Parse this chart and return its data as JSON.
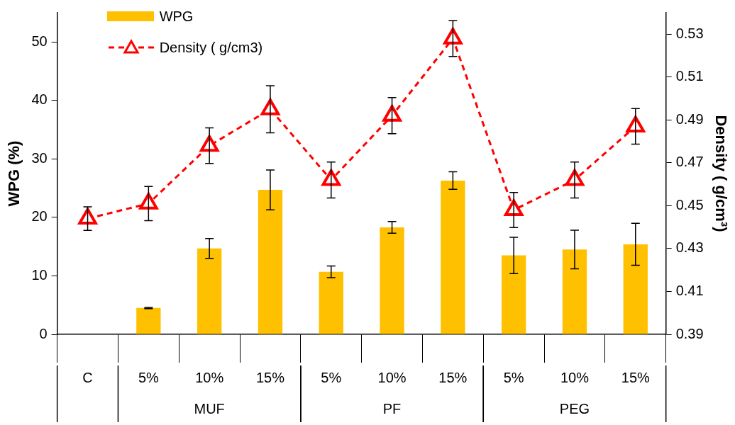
{
  "chart_data": {
    "type": "bar",
    "categories": [
      "C",
      "5%",
      "10%",
      "15%",
      "5%",
      "10%",
      "15%",
      "5%",
      "10%",
      "15%"
    ],
    "ylabel": "WPG (%)",
    "y2label": "Density ( g/cm³)",
    "ylim": [
      0,
      55
    ],
    "yticks": [
      0,
      10,
      20,
      30,
      40,
      50
    ],
    "y2lim": [
      0.39,
      0.54
    ],
    "y2ticks": [
      0.39,
      0.41,
      0.43,
      0.45,
      0.47,
      0.49,
      0.51,
      0.53
    ],
    "series": [
      {
        "name": "WPG",
        "color": "#ffc000",
        "values": [
          null,
          4.5,
          14.7,
          24.7,
          10.7,
          18.3,
          26.3,
          13.5,
          14.5,
          15.4
        ],
        "errors": [
          null,
          0.1,
          1.7,
          3.4,
          1.0,
          1.0,
          1.5,
          3.1,
          3.3,
          3.6
        ]
      },
      {
        "name": "Density ( g/cm3)",
        "type": "line",
        "axis": "y2",
        "color": "#ff0000",
        "marker": "triangle",
        "line_style": "dashed",
        "values": [
          0.444,
          0.451,
          0.478,
          0.495,
          0.462,
          0.492,
          0.528,
          0.448,
          0.462,
          0.487
        ],
        "errors": [
          0.0055,
          0.008,
          0.0083,
          0.011,
          0.0084,
          0.0084,
          0.0084,
          0.0082,
          0.0084,
          0.0083
        ]
      }
    ],
    "annotations": [
      "MUF",
      "PF",
      "PEG"
    ],
    "grid": false,
    "legend": "top left"
  }
}
